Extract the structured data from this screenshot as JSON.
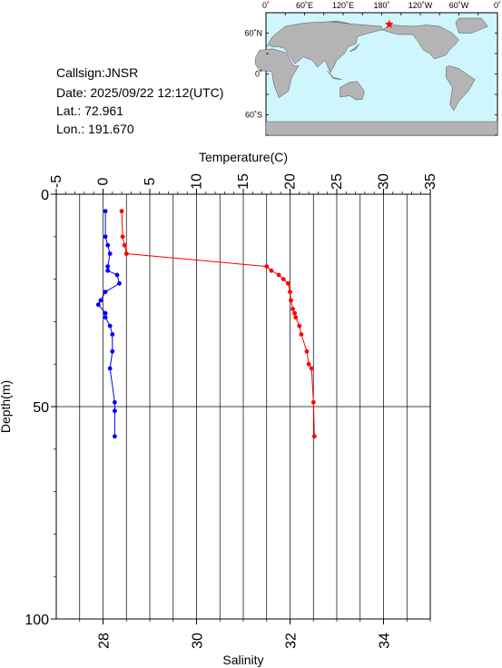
{
  "station": {
    "callsign": "Callsign:JNSR",
    "date_label": "Date:",
    "date_value": "2025/09/22 12:12(UTC)",
    "lat_label": "Lat.:",
    "lat_value": "72.961",
    "lon_label": "Lon.:",
    "lon_value": "191.670"
  },
  "map": {
    "top_labels": [
      "0˚",
      "60˚E",
      "120˚E",
      "180˚",
      "120˚W",
      "60˚W",
      "0˚"
    ],
    "left_labels": [
      "60˚N",
      "0˚",
      "60˚S"
    ],
    "ocean_color": "#cff6fc",
    "land_color": "#b4b4b4",
    "marker_color": "#ff0000",
    "marker": {
      "lon": 191.67,
      "lat": 72.961
    }
  },
  "chart_data": {
    "type": "line",
    "top_axis": {
      "label": "Temperature(C)",
      "range": [
        -5,
        35
      ],
      "ticks": [
        -5,
        0,
        5,
        10,
        15,
        20,
        25,
        30,
        35
      ]
    },
    "bottom_axis": {
      "label": "Salinity",
      "range": [
        27,
        35
      ],
      "ticks": [
        28,
        30,
        32,
        34
      ]
    },
    "left_axis": {
      "label": "Depth(m)",
      "range": [
        0,
        100
      ],
      "inverted": true,
      "ticks": [
        0,
        50,
        100
      ]
    },
    "grid": true,
    "series": [
      {
        "measure": "temperature",
        "color": "#ff0000",
        "points": [
          [
            2.0,
            4
          ],
          [
            2.1,
            10
          ],
          [
            2.3,
            12
          ],
          [
            2.5,
            14
          ],
          [
            17.5,
            17
          ],
          [
            18.0,
            18
          ],
          [
            18.8,
            19
          ],
          [
            19.3,
            20
          ],
          [
            19.8,
            21
          ],
          [
            20.0,
            23
          ],
          [
            20.1,
            25
          ],
          [
            20.3,
            27
          ],
          [
            20.5,
            28
          ],
          [
            20.6,
            29
          ],
          [
            21.0,
            31
          ],
          [
            21.2,
            33
          ],
          [
            21.8,
            37
          ],
          [
            22.0,
            40
          ],
          [
            22.3,
            41
          ],
          [
            22.5,
            49
          ],
          [
            22.6,
            57
          ]
        ]
      },
      {
        "measure": "salinity",
        "color": "#0000ff",
        "points": [
          [
            28.05,
            4
          ],
          [
            28.05,
            10
          ],
          [
            28.1,
            12
          ],
          [
            28.15,
            14
          ],
          [
            28.1,
            17
          ],
          [
            28.1,
            18
          ],
          [
            28.3,
            19
          ],
          [
            28.35,
            21
          ],
          [
            28.05,
            23
          ],
          [
            27.95,
            25
          ],
          [
            27.9,
            26
          ],
          [
            28.05,
            28
          ],
          [
            28.05,
            29
          ],
          [
            28.15,
            31
          ],
          [
            28.2,
            33
          ],
          [
            28.2,
            37
          ],
          [
            28.15,
            41
          ],
          [
            28.25,
            49
          ],
          [
            28.25,
            51
          ],
          [
            28.25,
            57
          ]
        ]
      }
    ]
  }
}
